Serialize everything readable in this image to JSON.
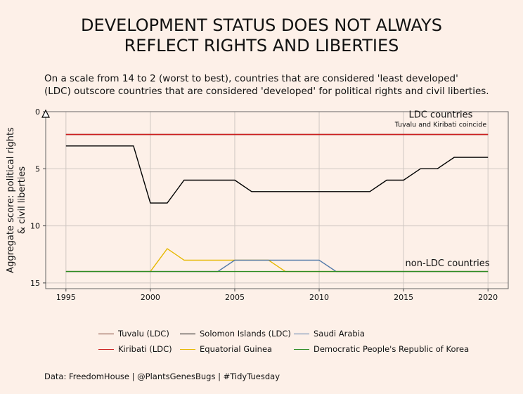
{
  "title": [
    "DEVELOPMENT STATUS DOES NOT ALWAYS",
    "REFLECT RIGHTS AND LIBERTIES"
  ],
  "subtitle": [
    "On a scale from 14 to 2 (worst to best), countries that are considered 'least developed'",
    "(LDC) outscore countries that are considered 'developed' for political rights and civil liberties."
  ],
  "caption": "Data: FreedomHouse | @PlantsGenesBugs | #TidyTuesday",
  "chart_data": {
    "type": "line",
    "xlabel": "",
    "ylabel": [
      "Aggregate score: political rights",
      "& civil liberties"
    ],
    "xlim": [
      1993.8,
      2021.2
    ],
    "ylim": [
      15.5,
      0
    ],
    "y_reversed": true,
    "xticks": [
      1995,
      2000,
      2005,
      2010,
      2015,
      2020
    ],
    "yticks": [
      0,
      5,
      10,
      15
    ],
    "grid": true,
    "legend_position": "bottom",
    "annotations": [
      {
        "text": "LDC countries",
        "x": 2017.2,
        "y": 0.1
      },
      {
        "text": "Tuvalu and Kiribati coincide",
        "x": 2017.2,
        "y": 1.0
      },
      {
        "text": "non-LDC countries",
        "x": 2017.6,
        "y": 13.1
      }
    ],
    "series": [
      {
        "name": "Tuvalu (LDC)",
        "color": "#7a3a2a",
        "x": [
          1995,
          2020
        ],
        "y": [
          2,
          2
        ]
      },
      {
        "name": "Kiribati (LDC)",
        "color": "#cc1f1f",
        "x": [
          1995,
          2020
        ],
        "y": [
          2,
          2
        ]
      },
      {
        "name": "Solomon Islands (LDC)",
        "color": "#000000",
        "x": [
          1995,
          1996,
          1997,
          1998,
          1999,
          2000,
          2001,
          2002,
          2003,
          2004,
          2005,
          2006,
          2007,
          2008,
          2009,
          2010,
          2011,
          2012,
          2013,
          2014,
          2015,
          2016,
          2017,
          2018,
          2019,
          2020
        ],
        "y": [
          3,
          3,
          3,
          3,
          3,
          8,
          8,
          6,
          6,
          6,
          6,
          7,
          7,
          7,
          7,
          7,
          7,
          7,
          7,
          6,
          6,
          5,
          5,
          4,
          4,
          4
        ]
      },
      {
        "name": "Equatorial Guinea",
        "color": "#e6b800",
        "x": [
          1995,
          2000,
          2001,
          2002,
          2003,
          2004,
          2005,
          2006,
          2007,
          2008,
          2009,
          2010,
          2020
        ],
        "y": [
          14,
          14,
          12,
          13,
          13,
          13,
          13,
          13,
          13,
          14,
          14,
          14,
          14
        ]
      },
      {
        "name": "Saudi Arabia",
        "color": "#4f77a8",
        "x": [
          1995,
          2004,
          2005,
          2006,
          2007,
          2008,
          2009,
          2010,
          2011,
          2020
        ],
        "y": [
          14,
          14,
          13,
          13,
          13,
          13,
          13,
          13,
          14,
          14
        ]
      },
      {
        "name": "Democratic People's Republic of Korea",
        "color": "#2e8b22",
        "x": [
          1995,
          2020
        ],
        "y": [
          14,
          14
        ]
      }
    ]
  }
}
